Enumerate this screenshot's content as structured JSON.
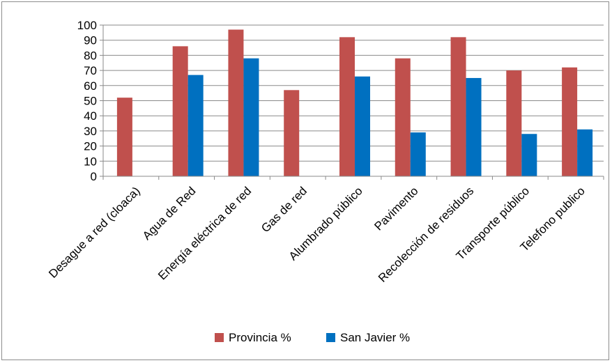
{
  "chart_data": {
    "type": "bar",
    "categories": [
      "Desague a red (cloaca)",
      "Agua de Red",
      "Energía eléctrica de red",
      "Gas de red",
      "Alumbrado público",
      "Pavimento",
      "Recolección de residuos",
      "Transporte público",
      "Telefono publico"
    ],
    "series": [
      {
        "name": "Provincia %",
        "color": "#c0504d",
        "values": [
          52,
          86,
          97,
          57,
          92,
          78,
          92,
          70,
          72
        ]
      },
      {
        "name": "San Javier %",
        "color": "#0070c0",
        "values": [
          null,
          67,
          78,
          null,
          66,
          29,
          65,
          28,
          31
        ]
      }
    ],
    "ylim": [
      0,
      100
    ],
    "yticks": [
      0,
      10,
      20,
      30,
      40,
      50,
      60,
      70,
      80,
      90,
      100
    ],
    "grid": true,
    "legend": "bottom"
  }
}
